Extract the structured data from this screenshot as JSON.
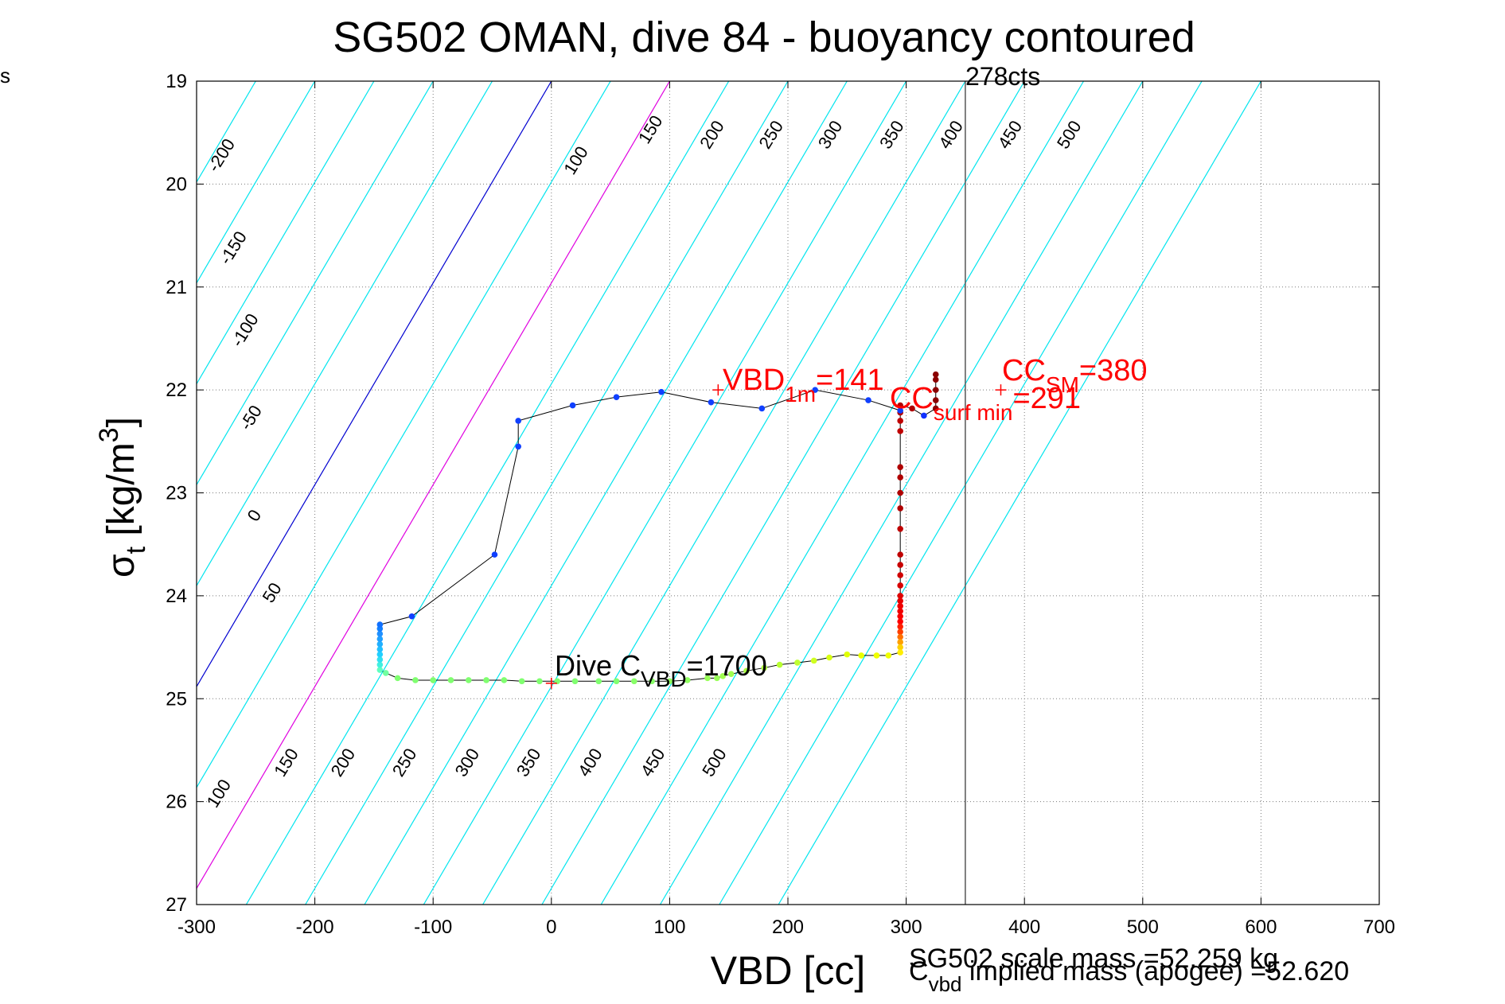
{
  "corner_text": "s",
  "chart_data": {
    "type": "scatter",
    "title": "SG502 OMAN, dive 84 - buoyancy contoured",
    "xlabel": "VBD [cc]",
    "ylabel_main": "σ",
    "ylabel_sub": "t",
    "ylabel_rest": " [kg/m",
    "ylabel_sup": "3",
    "ylabel_close": "]",
    "xlim": [
      -300,
      700
    ],
    "ylim": [
      27,
      19
    ],
    "y_inverted": true,
    "grid": true,
    "x_ticks": [
      "-300",
      "-200",
      "-100",
      "0",
      "100",
      "200",
      "300",
      "400",
      "500",
      "600",
      "700"
    ],
    "y_ticks": [
      "19",
      "20",
      "21",
      "22",
      "23",
      "24",
      "25",
      "26",
      "27"
    ],
    "contours": {
      "slope_cc_per_sigma": -51,
      "cyan": [
        -250,
        -200,
        -150,
        -100,
        -50,
        50,
        150,
        200,
        250,
        300,
        350,
        400,
        450,
        500,
        550,
        600
      ],
      "blue": [
        0
      ],
      "magenta": [
        100
      ],
      "colors": {
        "cyan": "#00e5ee",
        "blue": "#0000d0",
        "magenta": "#e000e0"
      },
      "labels_upper": [
        {
          "v": -200,
          "text": "-200",
          "x": -275,
          "y": 19.75
        },
        {
          "v": -150,
          "text": "-150",
          "x": -265,
          "y": 20.65
        },
        {
          "v": -100,
          "text": "-100",
          "x": -255,
          "y": 21.45
        },
        {
          "v": -50,
          "text": "-50",
          "x": -250,
          "y": 22.3
        },
        {
          "v": 0,
          "text": "0",
          "x": -247,
          "y": 23.25
        },
        {
          "v": 50,
          "text": "50",
          "x": -232,
          "y": 24.0
        },
        {
          "v": 100,
          "text": "100",
          "x": 25,
          "y": 19.8
        },
        {
          "v": 150,
          "text": "150",
          "x": 88,
          "y": 19.5
        },
        {
          "v": 200,
          "text": "200",
          "x": 140,
          "y": 19.55
        },
        {
          "v": 250,
          "text": "250",
          "x": 190,
          "y": 19.55
        },
        {
          "v": 300,
          "text": "300",
          "x": 240,
          "y": 19.55
        },
        {
          "v": 350,
          "text": "350",
          "x": 292,
          "y": 19.55
        },
        {
          "v": 400,
          "text": "400",
          "x": 342,
          "y": 19.55
        },
        {
          "v": 450,
          "text": "450",
          "x": 392,
          "y": 19.55
        },
        {
          "v": 500,
          "text": "500",
          "x": 442,
          "y": 19.55
        }
      ],
      "labels_lower": [
        {
          "v": 100,
          "text": "100",
          "x": -277,
          "y": 25.95
        },
        {
          "v": 150,
          "text": "150",
          "x": -220,
          "y": 25.65
        },
        {
          "v": 200,
          "text": "200",
          "x": -172,
          "y": 25.65
        },
        {
          "v": 250,
          "text": "250",
          "x": -120,
          "y": 25.65
        },
        {
          "v": 300,
          "text": "300",
          "x": -67,
          "y": 25.65
        },
        {
          "v": 350,
          "text": "350",
          "x": -15,
          "y": 25.65
        },
        {
          "v": 400,
          "text": "400",
          "x": 37,
          "y": 25.65
        },
        {
          "v": 450,
          "text": "450",
          "x": 90,
          "y": 25.65
        },
        {
          "v": 500,
          "text": "500",
          "x": 142,
          "y": 25.65
        }
      ]
    },
    "series": [
      {
        "points": [
          {
            "x": 325,
            "y": 21.85,
            "c": "#8b0000"
          },
          {
            "x": 325,
            "y": 21.9,
            "c": "#8b0000"
          },
          {
            "x": 325,
            "y": 22.0,
            "c": "#8b0000"
          },
          {
            "x": 325,
            "y": 22.1,
            "c": "#8b0000"
          },
          {
            "x": 325,
            "y": 22.18,
            "c": "#8b0000"
          },
          {
            "x": 315,
            "y": 22.25,
            "c": "#1030ff"
          },
          {
            "x": 305,
            "y": 22.18,
            "c": "#b00000"
          },
          {
            "x": 295,
            "y": 22.15,
            "c": "#b00000"
          },
          {
            "x": 295,
            "y": 22.22,
            "c": "#b00000"
          },
          {
            "x": 295,
            "y": 22.3,
            "c": "#c00000"
          },
          {
            "x": 295,
            "y": 22.4,
            "c": "#c00000"
          },
          {
            "x": 295,
            "y": 22.75,
            "c": "#b00000"
          },
          {
            "x": 295,
            "y": 22.85,
            "c": "#b00000"
          },
          {
            "x": 295,
            "y": 23.0,
            "c": "#b00000"
          },
          {
            "x": 295,
            "y": 23.15,
            "c": "#b00000"
          },
          {
            "x": 295,
            "y": 23.35,
            "c": "#c00000"
          },
          {
            "x": 295,
            "y": 23.6,
            "c": "#c00000"
          },
          {
            "x": 295,
            "y": 23.7,
            "c": "#c80000"
          },
          {
            "x": 295,
            "y": 23.8,
            "c": "#d00000"
          },
          {
            "x": 295,
            "y": 23.9,
            "c": "#d80000"
          },
          {
            "x": 295,
            "y": 24.0,
            "c": "#e00000"
          },
          {
            "x": 295,
            "y": 24.05,
            "c": "#e80000"
          },
          {
            "x": 295,
            "y": 24.1,
            "c": "#f00000"
          },
          {
            "x": 295,
            "y": 24.15,
            "c": "#f00000"
          },
          {
            "x": 295,
            "y": 24.2,
            "c": "#f80000"
          },
          {
            "x": 295,
            "y": 24.25,
            "c": "#ff0000"
          },
          {
            "x": 295,
            "y": 24.3,
            "c": "#ff2000"
          },
          {
            "x": 295,
            "y": 24.35,
            "c": "#ff4000"
          },
          {
            "x": 295,
            "y": 24.4,
            "c": "#ff7000"
          },
          {
            "x": 295,
            "y": 24.45,
            "c": "#ffa000"
          },
          {
            "x": 295,
            "y": 24.5,
            "c": "#ffd000"
          },
          {
            "x": 295,
            "y": 24.55,
            "c": "#ffee00"
          },
          {
            "x": 285,
            "y": 24.58,
            "c": "#f0ff00"
          },
          {
            "x": 275,
            "y": 24.58,
            "c": "#f0ff00"
          },
          {
            "x": 262,
            "y": 24.58,
            "c": "#e8ff00"
          },
          {
            "x": 250,
            "y": 24.57,
            "c": "#e0ff00"
          },
          {
            "x": 235,
            "y": 24.6,
            "c": "#d8ff10"
          },
          {
            "x": 222,
            "y": 24.63,
            "c": "#d0ff20"
          },
          {
            "x": 208,
            "y": 24.65,
            "c": "#c0ff30"
          },
          {
            "x": 193,
            "y": 24.67,
            "c": "#b8ff30"
          },
          {
            "x": 180,
            "y": 24.7,
            "c": "#b0ff40"
          },
          {
            "x": 165,
            "y": 24.73,
            "c": "#a8ff40"
          },
          {
            "x": 152,
            "y": 24.76,
            "c": "#a0ff50"
          },
          {
            "x": 145,
            "y": 24.78,
            "c": "#a0ff50"
          },
          {
            "x": 140,
            "y": 24.8,
            "c": "#98ff58"
          },
          {
            "x": 132,
            "y": 24.8,
            "c": "#98ff58"
          },
          {
            "x": 115,
            "y": 24.82,
            "c": "#90ff60"
          },
          {
            "x": 100,
            "y": 24.83,
            "c": "#90ff60"
          },
          {
            "x": 85,
            "y": 24.83,
            "c": "#88ff68"
          },
          {
            "x": 70,
            "y": 24.83,
            "c": "#88ff68"
          },
          {
            "x": 55,
            "y": 24.83,
            "c": "#80ff70"
          },
          {
            "x": 40,
            "y": 24.83,
            "c": "#80ff70"
          },
          {
            "x": 20,
            "y": 24.83,
            "c": "#80ff70"
          },
          {
            "x": 5,
            "y": 24.83,
            "c": "#80ff70"
          },
          {
            "x": -10,
            "y": 24.83,
            "c": "#80ff70"
          },
          {
            "x": -25,
            "y": 24.83,
            "c": "#80ff70"
          },
          {
            "x": -40,
            "y": 24.82,
            "c": "#80ff70"
          },
          {
            "x": -55,
            "y": 24.82,
            "c": "#80ff70"
          },
          {
            "x": -70,
            "y": 24.82,
            "c": "#80ff70"
          },
          {
            "x": -85,
            "y": 24.82,
            "c": "#80ff70"
          },
          {
            "x": -100,
            "y": 24.82,
            "c": "#80ff70"
          },
          {
            "x": -115,
            "y": 24.82,
            "c": "#80ff70"
          },
          {
            "x": -130,
            "y": 24.8,
            "c": "#80ff70"
          },
          {
            "x": -140,
            "y": 24.75,
            "c": "#70ffa0"
          },
          {
            "x": -145,
            "y": 24.72,
            "c": "#60ffc0"
          },
          {
            "x": -145,
            "y": 24.67,
            "c": "#40f0e0"
          },
          {
            "x": -145,
            "y": 24.62,
            "c": "#30e0f0"
          },
          {
            "x": -145,
            "y": 24.57,
            "c": "#20d0ff"
          },
          {
            "x": -145,
            "y": 24.52,
            "c": "#20c0ff"
          },
          {
            "x": -145,
            "y": 24.47,
            "c": "#20b0ff"
          },
          {
            "x": -145,
            "y": 24.42,
            "c": "#20a0ff"
          },
          {
            "x": -145,
            "y": 24.37,
            "c": "#2090ff"
          },
          {
            "x": -145,
            "y": 24.32,
            "c": "#1080ff"
          },
          {
            "x": -145,
            "y": 24.28,
            "c": "#1070ff"
          },
          {
            "x": -118,
            "y": 24.2,
            "c": "#1040ff"
          },
          {
            "x": -48,
            "y": 23.6,
            "c": "#1040ff"
          },
          {
            "x": -28,
            "y": 22.55,
            "c": "#1040ff"
          },
          {
            "x": -28,
            "y": 22.3,
            "c": "#1040ff"
          },
          {
            "x": 18,
            "y": 22.15,
            "c": "#1040ff"
          },
          {
            "x": 55,
            "y": 22.07,
            "c": "#1040ff"
          },
          {
            "x": 93,
            "y": 22.02,
            "c": "#1040ff"
          },
          {
            "x": 135,
            "y": 22.12,
            "c": "#1040ff"
          },
          {
            "x": 178,
            "y": 22.18,
            "c": "#1040ff"
          },
          {
            "x": 223,
            "y": 22.0,
            "c": "#1040ff"
          },
          {
            "x": 268,
            "y": 22.1,
            "c": "#1040ff"
          },
          {
            "x": 295,
            "y": 22.2,
            "c": "#1040ff"
          }
        ]
      }
    ],
    "vline": {
      "x": 350,
      "label": "278cts"
    },
    "markers": [
      {
        "x": 141,
        "y": 22.0,
        "color": "#ff0000"
      },
      {
        "x": 380,
        "y": 22.0,
        "color": "#ff0000"
      },
      {
        "x": 0,
        "y": 24.85,
        "color": "#ff0000"
      }
    ],
    "annotations": {
      "vbd1m": {
        "main": "VBD",
        "sub": "1m",
        "rest": "=141"
      },
      "cc_surf": {
        "main": "CC",
        "sub": "surf min",
        "rest": "=291"
      },
      "cc_sm": {
        "main": "CC",
        "sub": "SM",
        "rest": "=380"
      },
      "dive_c": {
        "main": "Dive C",
        "sub": "VBD",
        "rest": "=1700"
      }
    },
    "footer": {
      "line1": "SG502 scale mass =52.259 kg",
      "line2_main": "C",
      "line2_sub": "vbd",
      "line2_rest": " implied mass (apogee) =52.620"
    }
  }
}
